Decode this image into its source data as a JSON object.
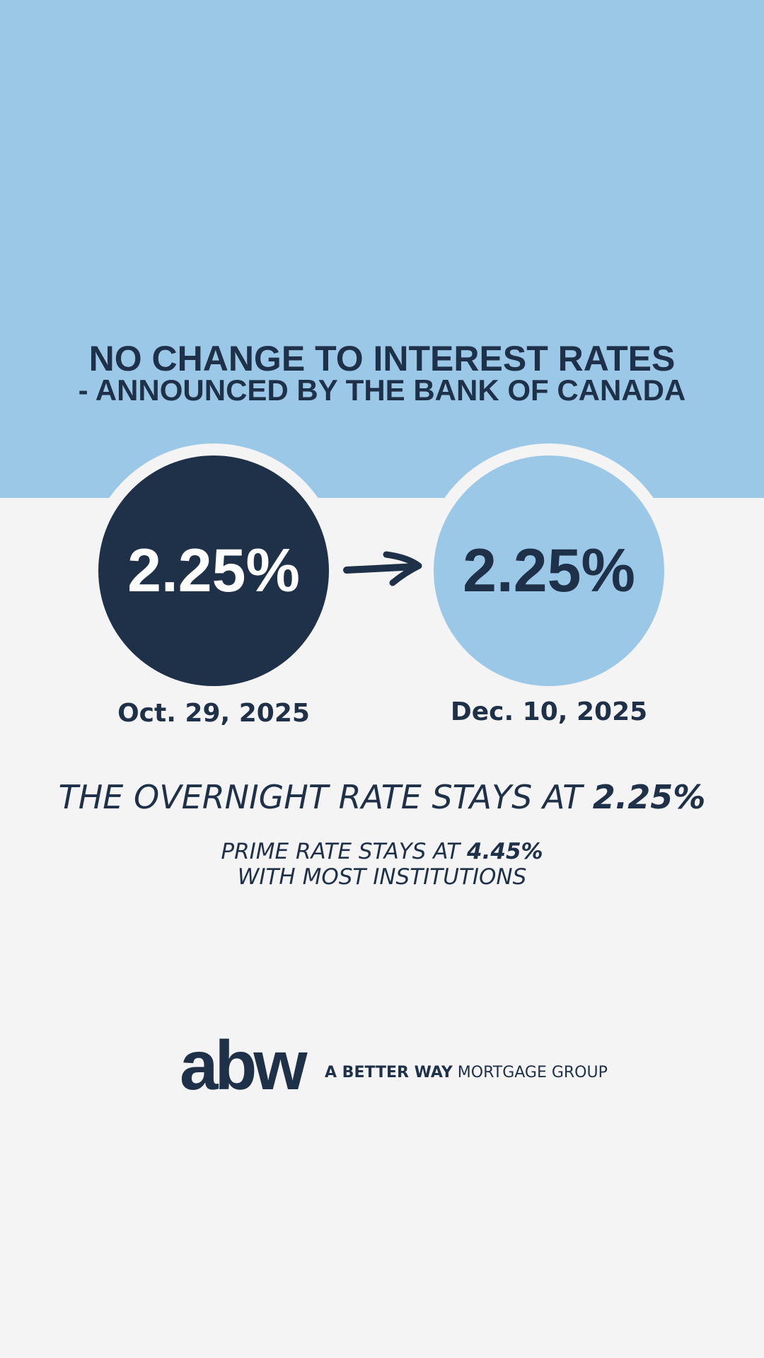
{
  "header": {
    "title_line1": "NO CHANGE TO INTEREST RATES",
    "title_line2": "- ANNOUNCED BY THE BANK OF CANADA"
  },
  "rates": [
    {
      "rate": "2.25%",
      "date": "Oct. 29, 2025"
    },
    {
      "rate": "2.25%",
      "date": "Dec. 10, 2025"
    }
  ],
  "overnight": {
    "text": "THE OVERNIGHT RATE STAYS AT ",
    "value": "2.25%"
  },
  "prime": {
    "text": "PRIME RATE STAYS AT ",
    "value": "4.45%",
    "line2": "WITH MOST INSTITUTIONS"
  },
  "logo": {
    "mark": "abw",
    "bold": "A BETTER WAY",
    "rest": "MORTGAGE GROUP"
  }
}
